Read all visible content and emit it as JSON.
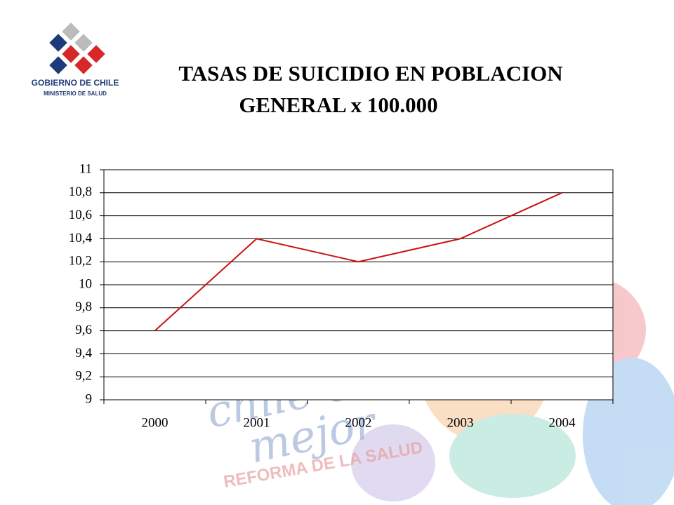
{
  "logo": {
    "name": "GOBIERNO DE CHILE",
    "subtitle": "MINISTERIO DE SALUD"
  },
  "watermark": {
    "slogan_lines": [
      "chile está",
      "mejor"
    ],
    "reform": "REFORMA DE  LA SALUD"
  },
  "chart_data": {
    "type": "line",
    "title": [
      "TASAS DE SUICIDIO  EN POBLACION",
      "GENERAL x 100.000"
    ],
    "categories": [
      "2000",
      "2001",
      "2002",
      "2003",
      "2004"
    ],
    "values": [
      9.6,
      10.4,
      10.2,
      10.4,
      10.8
    ],
    "color": "#cc1111",
    "ylim": [
      9,
      11
    ],
    "yticks": [
      9,
      {
        "value": 9.2,
        "label": "9,2"
      },
      {
        "value": 9.4,
        "label": "9,4"
      },
      {
        "value": 9.6,
        "label": "9,6"
      },
      {
        "value": 9.8,
        "label": "9,8"
      },
      10,
      {
        "value": 10.2,
        "label": "10,2"
      },
      {
        "value": 10.4,
        "label": "10,4"
      },
      {
        "value": 10.6,
        "label": "10,6"
      },
      {
        "value": 10.8,
        "label": "10,8"
      },
      11
    ],
    "grid": true
  }
}
